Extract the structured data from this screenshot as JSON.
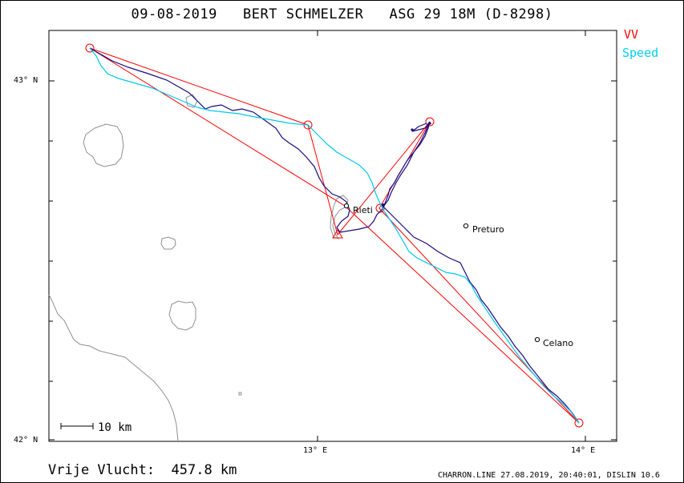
{
  "title": "09-08-2019   BERT SCHMELZER   ASG 29 18M (D-8298)",
  "legend": {
    "vv": "VV",
    "speed": "Speed",
    "vv_color": "#ff0000",
    "speed_color": "#00d0f0",
    "track_color": "#1a0a80"
  },
  "distance_label": "Vrije Vlucht:  457.8 km",
  "footer": "CHARRON.LINE 27.08.2019, 20:40:01, DISLIN 10.6",
  "scale_bar": {
    "label": "10 km",
    "length_km": 10
  },
  "axes": {
    "lat_labels": [
      "43° N",
      "42° N"
    ],
    "lon_labels": [
      "13° E",
      "14° E"
    ]
  },
  "towns": [
    {
      "name": "Rieti",
      "lon": 13.11,
      "lat": 42.66
    },
    {
      "name": "Preturo",
      "lon": 13.55,
      "lat": 42.6
    },
    {
      "name": "Celano",
      "lon": 13.82,
      "lat": 42.29
    }
  ],
  "icons": [
    "circle-turnpoint-icon",
    "triangle-start-icon",
    "diamond-marker-icon"
  ]
}
